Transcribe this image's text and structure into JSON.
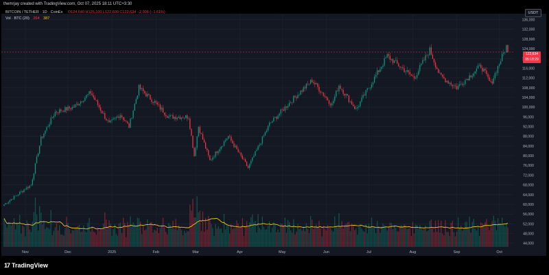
{
  "creator_line": "themrjay created with TradingView.com, Oct 07, 2025 18:11 UTC+3:30",
  "legend": {
    "symbol": "BITCOIN / TETHER · 1D · CoinEx",
    "ohlc": "O124,640 H125,100 L122,600 C122,634 −2,006 (−1.61%)",
    "volume_label": "Vol · BTC (20)",
    "volume_value": "264",
    "volume_ma": "387"
  },
  "currency_button": "USDT",
  "last_price": "122,634",
  "countdown": "05:18:29",
  "brand": "TradingView",
  "colors": {
    "up": "#089981",
    "down": "#f23645",
    "ma": "#f5c518",
    "background": "#141823",
    "grid": "#1f2433"
  },
  "chart_data": {
    "type": "candlestick",
    "title": "BITCOIN / TETHER · 1D · CoinEx",
    "y_axis": {
      "side": "right",
      "range": [
        42500,
        137000
      ],
      "ticks": [
        "136,000",
        "132,000",
        "128,000",
        "124,000",
        "120,000",
        "116,000",
        "112,000",
        "108,000",
        "104,000",
        "100,000",
        "96,000",
        "92,000",
        "88,000",
        "84,000",
        "80,000",
        "76,000",
        "72,000",
        "68,000",
        "64,000",
        "60,000",
        "56,000",
        "52,000",
        "48,000",
        "44,000"
      ]
    },
    "x_axis": {
      "ticks": [
        "Nov",
        "Dec",
        "2025",
        "Feb",
        "Mar",
        "Apr",
        "May",
        "Jun",
        "Jul",
        "Aug",
        "Sep",
        "Oct"
      ],
      "start_date": "2024-10-17",
      "end_date": "2025-10-07"
    },
    "price_anchors": [
      {
        "date": "2024-10-17",
        "close": 60000
      },
      {
        "date": "2024-10-24",
        "close": 63000
      },
      {
        "date": "2024-11-01",
        "close": 66500
      },
      {
        "date": "2024-11-05",
        "close": 68000
      },
      {
        "date": "2024-11-12",
        "close": 87000
      },
      {
        "date": "2024-11-22",
        "close": 98000
      },
      {
        "date": "2024-12-05",
        "close": 100000
      },
      {
        "date": "2024-12-17",
        "close": 106000
      },
      {
        "date": "2024-12-30",
        "close": 93000
      },
      {
        "date": "2025-01-07",
        "close": 97000
      },
      {
        "date": "2025-01-13",
        "close": 92000
      },
      {
        "date": "2025-01-20",
        "close": 108000
      },
      {
        "date": "2025-01-31",
        "close": 102000
      },
      {
        "date": "2025-02-10",
        "close": 96000
      },
      {
        "date": "2025-02-24",
        "close": 96000
      },
      {
        "date": "2025-02-28",
        "close": 80000
      },
      {
        "date": "2025-03-03",
        "close": 92000
      },
      {
        "date": "2025-03-11",
        "close": 78000
      },
      {
        "date": "2025-03-24",
        "close": 88000
      },
      {
        "date": "2025-04-07",
        "close": 75000
      },
      {
        "date": "2025-04-22",
        "close": 93000
      },
      {
        "date": "2025-05-08",
        "close": 103000
      },
      {
        "date": "2025-05-22",
        "close": 111000
      },
      {
        "date": "2025-06-05",
        "close": 101000
      },
      {
        "date": "2025-06-10",
        "close": 109000
      },
      {
        "date": "2025-06-22",
        "close": 99000
      },
      {
        "date": "2025-07-02",
        "close": 109000
      },
      {
        "date": "2025-07-14",
        "close": 121000
      },
      {
        "date": "2025-08-02",
        "close": 112000
      },
      {
        "date": "2025-08-13",
        "close": 123500
      },
      {
        "date": "2025-08-20",
        "close": 113000
      },
      {
        "date": "2025-09-01",
        "close": 108000
      },
      {
        "date": "2025-09-18",
        "close": 117000
      },
      {
        "date": "2025-09-25",
        "close": 109500
      },
      {
        "date": "2025-10-06",
        "close": 125000
      },
      {
        "date": "2025-10-07",
        "close": 122634
      }
    ],
    "volume": {
      "ma_length": 20,
      "last": 264,
      "ma": 387
    },
    "last_price_line": 122634
  }
}
